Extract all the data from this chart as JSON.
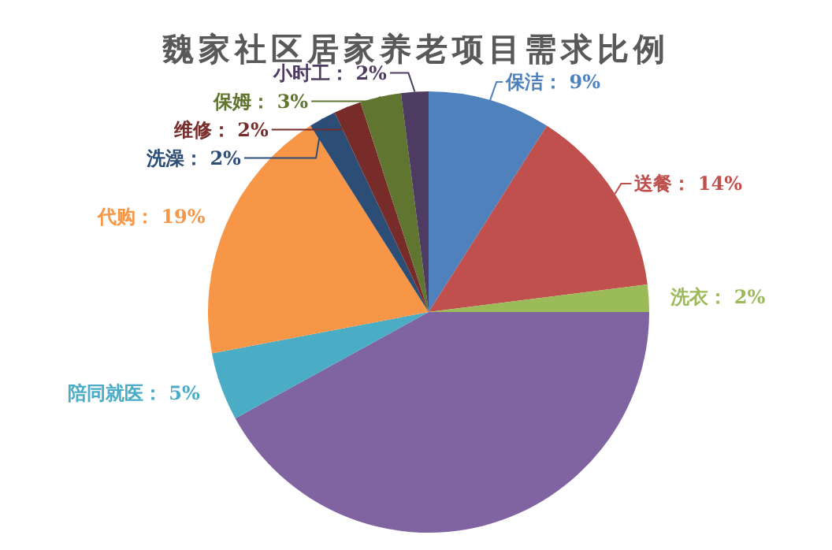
{
  "chart_data": {
    "type": "pie",
    "title": "魏家社区居家养老项目需求比例",
    "categories": [
      "保洁",
      "送餐",
      "洗衣",
      null,
      "陪同就医",
      "代购",
      "洗澡",
      "维修",
      "保姆",
      "小时工"
    ],
    "values": [
      9,
      14,
      2,
      42,
      5,
      19,
      2,
      2,
      3,
      2
    ],
    "value_labels": [
      "9%",
      "14%",
      "2%",
      null,
      "5%",
      "19%",
      "2%",
      "2%",
      "3%",
      "2%"
    ],
    "colors": [
      "#4f81bd",
      "#c0504d",
      "#9bbb59",
      "#8064a2",
      "#4bacc6",
      "#f79646",
      "#2c4d75",
      "#772c2a",
      "#5f7530",
      "#4d3b62"
    ]
  }
}
